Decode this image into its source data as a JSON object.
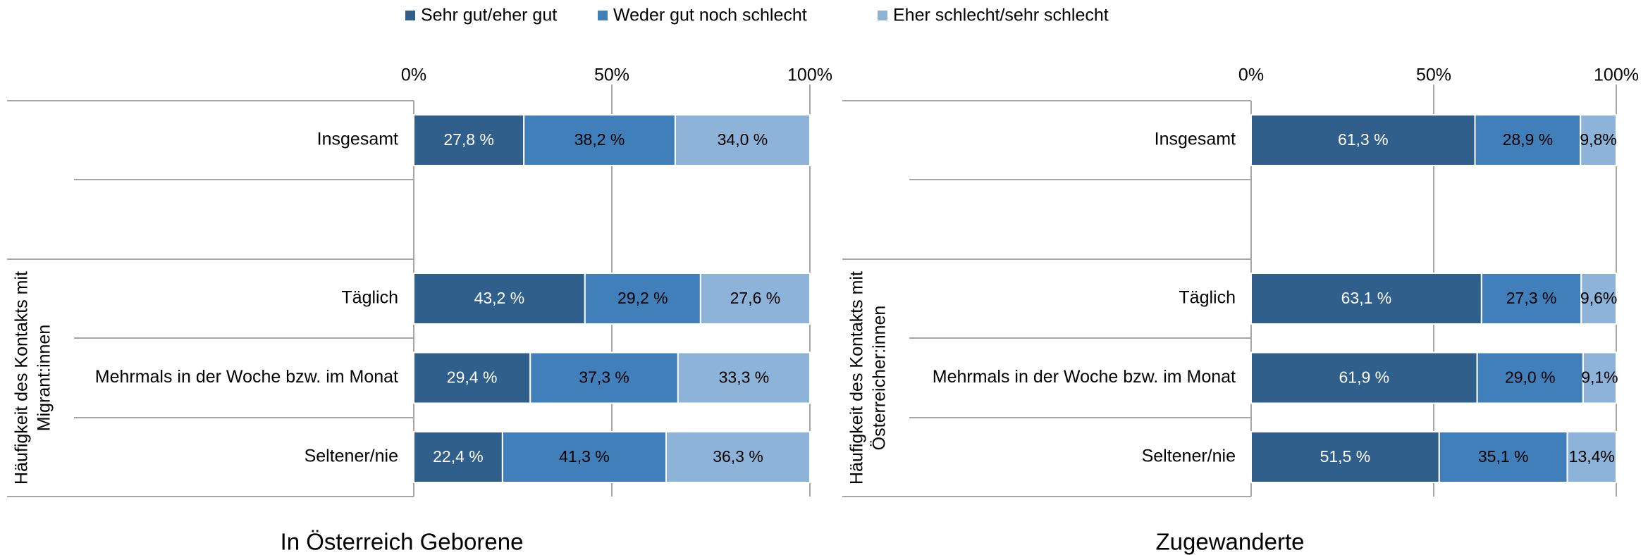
{
  "chart_data": [
    {
      "type": "stacked_bar_horizontal",
      "title": "In Österreich Geborene",
      "group_label": [
        "Häufigkeit des Kontakts mit",
        "Migrant:innen"
      ],
      "categories": [
        "Insgesamt",
        null,
        "Täglich",
        "Mehrmals in der Woche bzw. im Monat",
        "Seltener/nie"
      ],
      "xlim": [
        0,
        100
      ],
      "xticks": [
        {
          "value": 0,
          "label": "0%"
        },
        {
          "value": 50,
          "label": "50%"
        },
        {
          "value": 100,
          "label": "100%"
        }
      ],
      "grid": true,
      "series": [
        {
          "name": "Sehr gut/eher gut",
          "color": "#2f5f8a",
          "values": [
            27.8,
            null,
            43.2,
            29.4,
            22.4
          ],
          "value_labels": [
            "27,8 %",
            null,
            "43,2 %",
            "29,4 %",
            "22,4 %"
          ]
        },
        {
          "name": "Weder gut noch schlecht",
          "color": "#417fba",
          "values": [
            38.2,
            null,
            29.2,
            37.3,
            41.3
          ],
          "value_labels": [
            "38,2 %",
            null,
            "29,2 %",
            "37,3 %",
            "41,3 %"
          ]
        },
        {
          "name": "Eher schlecht/sehr schlecht",
          "color": "#8db3d9",
          "values": [
            34.0,
            null,
            27.6,
            33.3,
            36.3
          ],
          "value_labels": [
            "34,0 %",
            null,
            "27,6 %",
            "33,3 %",
            "36,3 %"
          ]
        }
      ]
    },
    {
      "type": "stacked_bar_horizontal",
      "title": "Zugewanderte",
      "group_label": [
        "Häufigkeit des Kontakts mit",
        "Österreicher:innen"
      ],
      "categories": [
        "Insgesamt",
        null,
        "Täglich",
        "Mehrmals in der Woche bzw. im Monat",
        "Seltener/nie"
      ],
      "xlim": [
        0,
        100
      ],
      "xticks": [
        {
          "value": 0,
          "label": "0%"
        },
        {
          "value": 50,
          "label": "50%"
        },
        {
          "value": 100,
          "label": "100%"
        }
      ],
      "grid": true,
      "series": [
        {
          "color": "#2f5f8a",
          "values": [
            61.3,
            null,
            63.1,
            61.9,
            51.5
          ],
          "value_labels": [
            "61,3 %",
            null,
            "63,1 %",
            "61,9 %",
            "51,5 %"
          ]
        },
        {
          "color": "#417fba",
          "values": [
            28.9,
            null,
            27.3,
            29.0,
            35.1
          ],
          "value_labels": [
            "28,9 %",
            null,
            "27,3 %",
            "29,0 %",
            "35,1 %"
          ]
        },
        {
          "color": "#8db3d9",
          "values": [
            9.8,
            null,
            9.6,
            9.1,
            13.4
          ],
          "value_labels": [
            "9,8%",
            null,
            "9,6%",
            "9,1%",
            "13,4%"
          ]
        }
      ]
    }
  ]
}
